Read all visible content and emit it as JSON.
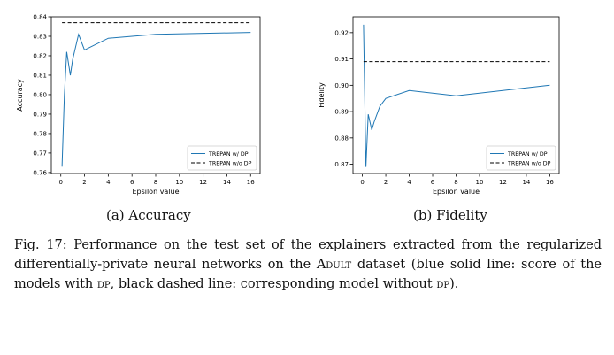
{
  "chart_data": [
    {
      "type": "line",
      "title": "",
      "xlabel": "Epsilon value",
      "ylabel": "Accuracy",
      "xlim": [
        -0.8,
        16.8
      ],
      "ylim": [
        0.7595,
        0.84
      ],
      "xticks": [
        0,
        2,
        4,
        6,
        8,
        10,
        12,
        14,
        16
      ],
      "yticks": [
        0.76,
        0.77,
        0.78,
        0.79,
        0.8,
        0.81,
        0.82,
        0.83,
        0.84
      ],
      "ytick_labels": [
        "0.76",
        "0.77",
        "0.78",
        "0.79",
        "0.80",
        "0.81",
        "0.82",
        "0.83",
        "0.84"
      ],
      "legend_position": "bottom-right",
      "grid": false,
      "series": [
        {
          "name": "TREPAN w/ DP",
          "style": "solid",
          "color": "#1f77b4",
          "x": [
            0.1,
            0.3,
            0.5,
            0.8,
            1.0,
            1.5,
            2.0,
            4.0,
            8.0,
            16.0
          ],
          "y": [
            0.763,
            0.8,
            0.822,
            0.81,
            0.818,
            0.831,
            0.823,
            0.829,
            0.831,
            0.832
          ]
        },
        {
          "name": "TREPAN w/o DP",
          "style": "dashed",
          "color": "#000000",
          "x": [
            0.1,
            16.0
          ],
          "y": [
            0.837,
            0.837
          ]
        }
      ]
    },
    {
      "type": "line",
      "title": "",
      "xlabel": "Epsilon value",
      "ylabel": "Fidelity",
      "xlim": [
        -0.8,
        16.8
      ],
      "ylim": [
        0.8665,
        0.926
      ],
      "xticks": [
        0,
        2,
        4,
        6,
        8,
        10,
        12,
        14,
        16
      ],
      "yticks": [
        0.87,
        0.88,
        0.89,
        0.9,
        0.91,
        0.92
      ],
      "ytick_labels": [
        "0.87",
        "0.88",
        "0.89",
        "0.90",
        "0.91",
        "0.92"
      ],
      "legend_position": "bottom-right",
      "grid": false,
      "series": [
        {
          "name": "TREPAN w/ DP",
          "style": "solid",
          "color": "#1f77b4",
          "x": [
            0.1,
            0.3,
            0.5,
            0.8,
            1.0,
            1.5,
            2.0,
            4.0,
            8.0,
            16.0
          ],
          "y": [
            0.923,
            0.869,
            0.889,
            0.883,
            0.886,
            0.892,
            0.895,
            0.898,
            0.896,
            0.9
          ]
        },
        {
          "name": "TREPAN w/o DP",
          "style": "dashed",
          "color": "#000000",
          "x": [
            0.1,
            16.0
          ],
          "y": [
            0.909,
            0.909
          ]
        }
      ]
    }
  ],
  "subcaptions": {
    "a": "(a) Accuracy",
    "b": "(b) Fidelity"
  },
  "caption": {
    "label": "Fig. 17:",
    "text_1": " Performance on the test set of the explainers extracted from the regularized differentially-private neural networks on the ",
    "dataset": "Adult",
    "text_2": " dataset (blue solid line: score of the models with ",
    "dp_1": "dp",
    "text_3": ", black dashed line: corresponding model without ",
    "dp_2": "dp",
    "text_4": ")."
  }
}
